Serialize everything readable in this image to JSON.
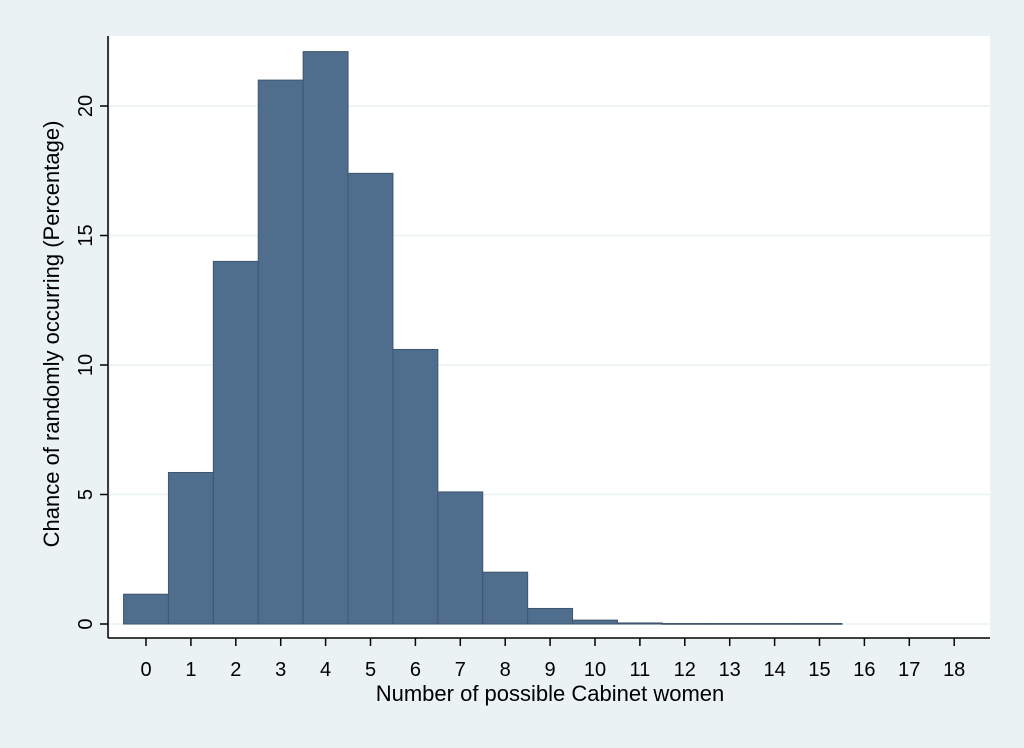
{
  "chart_data": {
    "type": "bar",
    "title": "",
    "xlabel": "Number of possible Cabinet women",
    "ylabel": "Chance of randomly occurring (Percentage)",
    "categories": [
      "0",
      "1",
      "2",
      "3",
      "4",
      "5",
      "6",
      "7",
      "8",
      "9",
      "10",
      "11",
      "12",
      "13",
      "14",
      "15",
      "16",
      "17",
      "18"
    ],
    "values": [
      1.15,
      5.85,
      14.0,
      21.0,
      22.1,
      17.4,
      10.6,
      5.1,
      2.0,
      0.6,
      0.15,
      0.04,
      0.02,
      0.02,
      0.02,
      0.02,
      0,
      0,
      0
    ],
    "yticks": [
      0,
      5,
      10,
      15,
      20
    ],
    "xticks": [
      "0",
      "1",
      "2",
      "3",
      "4",
      "5",
      "6",
      "7",
      "8",
      "9",
      "10",
      "11",
      "12",
      "13",
      "14",
      "15",
      "16",
      "17",
      "18"
    ],
    "ylim": [
      0,
      23
    ],
    "xlim": [
      -0.95,
      18.7
    ],
    "grid": true,
    "legend": "none",
    "colors": {
      "bar_fill": "#4f6d8c",
      "bar_stroke": "#40566e",
      "outer_background": "#eaf2f3",
      "plot_background": "#ffffff",
      "grid": "#eaf2f3",
      "axis": "#000000"
    }
  }
}
